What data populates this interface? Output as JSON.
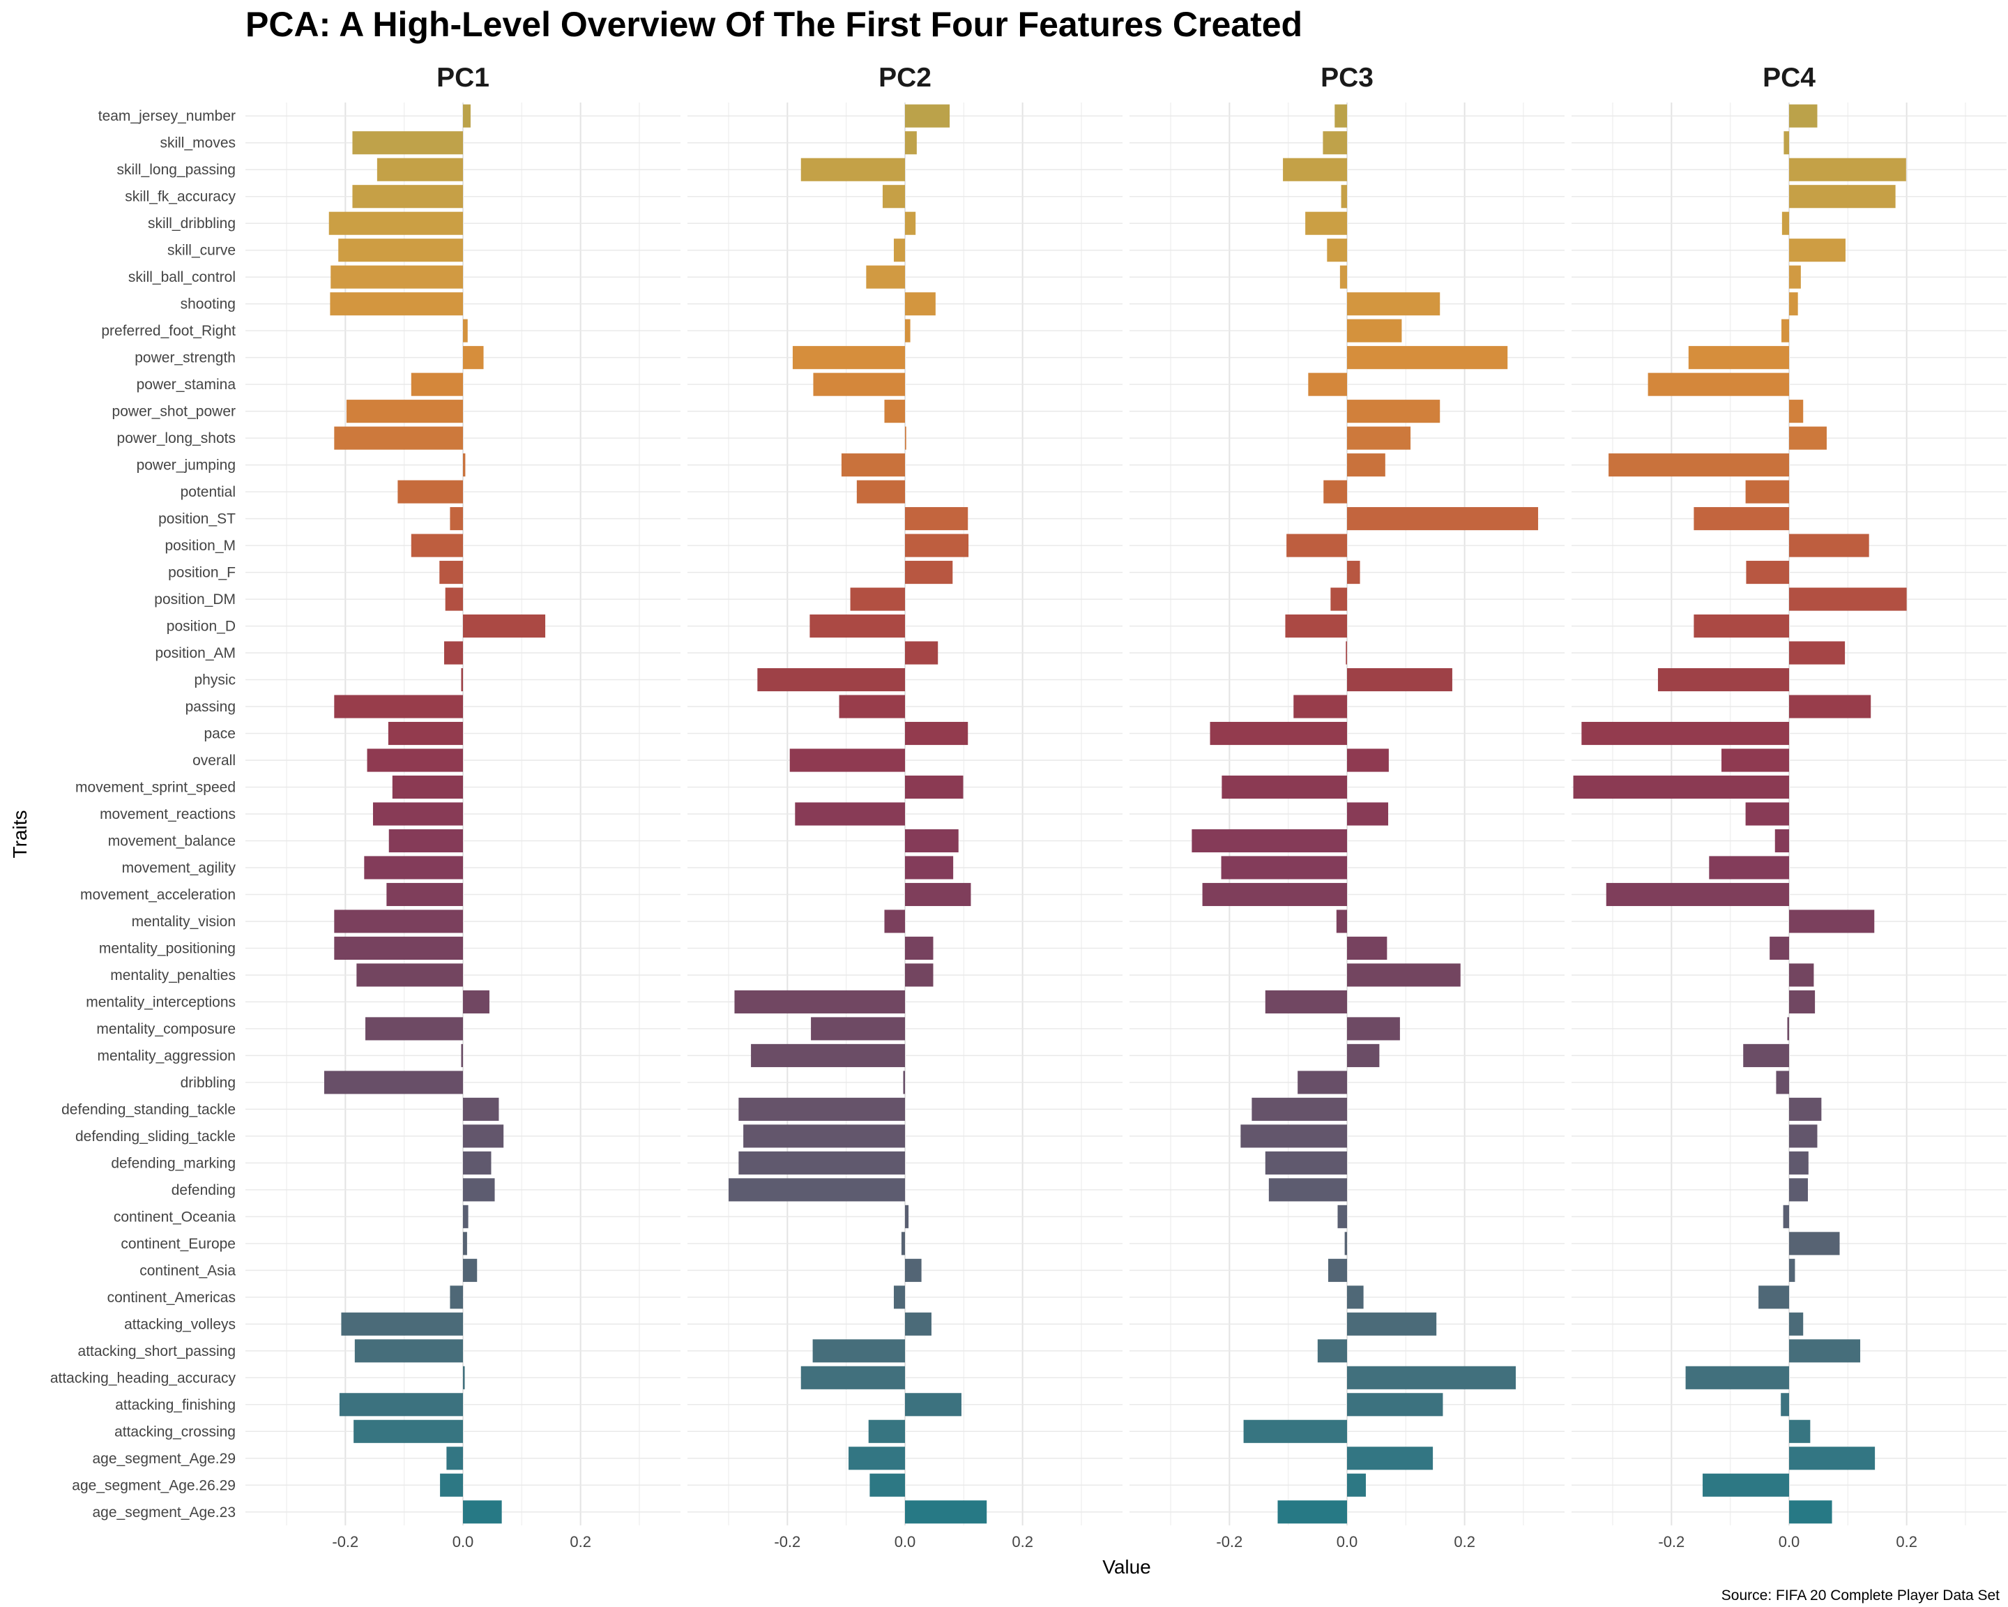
{
  "chart_data": {
    "type": "bar",
    "orientation": "horizontal",
    "title": "PCA: A High-Level Overview Of The First Four Features Created",
    "xlabel": "Value",
    "ylabel": "Traits",
    "caption": "Source: FIFA 20 Complete Player Data Set",
    "xlim": [
      -0.37,
      0.37
    ],
    "xticks": [
      -0.2,
      0.0,
      0.2
    ],
    "xtick_labels": [
      "-0.2",
      "0.0",
      "0.2"
    ],
    "grid": true,
    "legend": "none",
    "bar_colors": [
      "#bba24a",
      "#bfa24a",
      "#c4a147",
      "#c6a046",
      "#cb9f44",
      "#ce9d43",
      "#d19a42",
      "#d3963f",
      "#d4923d",
      "#d68e3c",
      "#d4873b",
      "#d1803b",
      "#cd793c",
      "#c9723c",
      "#c66b3c",
      "#c3653e",
      "#be5e3f",
      "#b85741",
      "#b25042",
      "#ab4944",
      "#a54546",
      "#9e4147",
      "#983d4b",
      "#933b4e",
      "#8f3a51",
      "#8b3a53",
      "#883b56",
      "#853b58",
      "#833c5a",
      "#7f3e5b",
      "#7b405d",
      "#77425f",
      "#734560",
      "#714762",
      "#6e4a64",
      "#6b4d66",
      "#684f68",
      "#66536a",
      "#63566c",
      "#60596e",
      "#5d5c70",
      "#5a5f72",
      "#576373",
      "#536575",
      "#4f6877",
      "#4b6b79",
      "#466e7b",
      "#41707d",
      "#3c727f",
      "#377581",
      "#337683",
      "#2d7884",
      "#277985"
    ],
    "categories": [
      "team_jersey_number",
      "skill_moves",
      "skill_long_passing",
      "skill_fk_accuracy",
      "skill_dribbling",
      "skill_curve",
      "skill_ball_control",
      "shooting",
      "preferred_foot_Right",
      "power_strength",
      "power_stamina",
      "power_shot_power",
      "power_long_shots",
      "power_jumping",
      "potential",
      "position_ST",
      "position_M",
      "position_F",
      "position_DM",
      "position_D",
      "position_AM",
      "physic",
      "passing",
      "pace",
      "overall",
      "movement_sprint_speed",
      "movement_reactions",
      "movement_balance",
      "movement_agility",
      "movement_acceleration",
      "mentality_vision",
      "mentality_positioning",
      "mentality_penalties",
      "mentality_interceptions",
      "mentality_composure",
      "mentality_aggression",
      "dribbling",
      "defending_standing_tackle",
      "defending_sliding_tackle",
      "defending_marking",
      "defending",
      "continent_Oceania",
      "continent_Europe",
      "continent_Asia",
      "continent_Americas",
      "attacking_volleys",
      "attacking_short_passing",
      "attacking_heading_accuracy",
      "attacking_finishing",
      "attacking_crossing",
      "age_segment_Age.29",
      "age_segment_Age.26.29",
      "age_segment_Age.23"
    ],
    "series": [
      {
        "name": "PC1",
        "values": [
          0.013,
          -0.188,
          -0.146,
          -0.188,
          -0.228,
          -0.212,
          -0.225,
          -0.226,
          0.008,
          0.035,
          -0.088,
          -0.198,
          -0.219,
          0.004,
          -0.111,
          -0.022,
          -0.088,
          -0.04,
          -0.03,
          0.14,
          -0.032,
          -0.003,
          -0.219,
          -0.127,
          -0.163,
          -0.12,
          -0.153,
          -0.126,
          -0.168,
          -0.13,
          -0.219,
          -0.219,
          -0.181,
          0.045,
          -0.166,
          -0.003,
          -0.236,
          0.061,
          0.069,
          0.048,
          0.054,
          0.009,
          0.007,
          0.024,
          -0.022,
          -0.207,
          -0.184,
          0.003,
          -0.21,
          -0.186,
          -0.028,
          -0.039,
          0.066
        ]
      },
      {
        "name": "PC2",
        "values": [
          0.076,
          0.02,
          -0.177,
          -0.038,
          0.018,
          -0.019,
          -0.066,
          0.052,
          0.009,
          -0.191,
          -0.156,
          -0.035,
          0.002,
          -0.108,
          -0.082,
          0.107,
          0.108,
          0.081,
          -0.093,
          -0.162,
          0.056,
          -0.251,
          -0.112,
          0.107,
          -0.196,
          0.099,
          -0.187,
          0.091,
          0.082,
          0.112,
          -0.035,
          0.048,
          0.048,
          -0.29,
          -0.16,
          -0.262,
          -0.003,
          -0.283,
          -0.275,
          -0.283,
          -0.3,
          0.006,
          -0.006,
          0.028,
          -0.019,
          0.045,
          -0.157,
          -0.177,
          0.096,
          -0.062,
          -0.096,
          -0.06,
          0.139
        ]
      },
      {
        "name": "PC3",
        "values": [
          -0.021,
          -0.041,
          -0.109,
          -0.01,
          -0.071,
          -0.034,
          -0.012,
          0.158,
          0.093,
          0.273,
          -0.066,
          0.158,
          0.108,
          0.065,
          -0.04,
          0.325,
          -0.103,
          0.022,
          -0.028,
          -0.105,
          -0.002,
          0.179,
          -0.091,
          -0.233,
          0.071,
          -0.213,
          0.07,
          -0.264,
          -0.214,
          -0.246,
          -0.018,
          0.068,
          0.193,
          -0.139,
          0.09,
          0.055,
          -0.084,
          -0.162,
          -0.181,
          -0.139,
          -0.133,
          -0.016,
          -0.004,
          -0.032,
          0.028,
          0.152,
          -0.05,
          0.287,
          0.163,
          -0.176,
          0.146,
          0.032,
          -0.118
        ]
      },
      {
        "name": "PC4",
        "values": [
          0.048,
          -0.009,
          0.199,
          0.181,
          -0.012,
          0.096,
          0.02,
          0.015,
          -0.013,
          -0.171,
          -0.24,
          0.024,
          0.064,
          -0.307,
          -0.074,
          -0.162,
          0.136,
          -0.073,
          0.2,
          -0.162,
          0.095,
          -0.223,
          0.139,
          -0.353,
          -0.115,
          -0.367,
          -0.074,
          -0.024,
          -0.136,
          -0.311,
          0.145,
          -0.033,
          0.042,
          0.044,
          -0.003,
          -0.078,
          -0.022,
          0.055,
          0.048,
          0.033,
          0.032,
          -0.01,
          0.086,
          0.01,
          -0.052,
          0.024,
          0.121,
          -0.176,
          -0.014,
          0.036,
          0.146,
          -0.147,
          0.073
        ]
      }
    ]
  }
}
